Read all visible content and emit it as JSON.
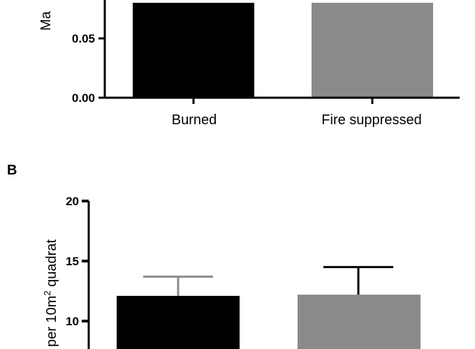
{
  "chart_data": [
    {
      "type": "bar",
      "panel": "",
      "categories": [
        "Burned",
        "Fire suppressed"
      ],
      "values": [
        0.08,
        0.08
      ],
      "colors": [
        "#000000",
        "#8a8a8a"
      ],
      "ylabel": "Ma",
      "yticks": [
        "0.00",
        "0.05"
      ],
      "ytick_values": [
        0.0,
        0.05
      ],
      "ylim": [
        0,
        0.08
      ],
      "visible_range_note": ""
    },
    {
      "type": "bar",
      "panel": "B",
      "categories": [
        "",
        ""
      ],
      "values": [
        12.1,
        12.2
      ],
      "errors": [
        1.6,
        2.3
      ],
      "colors": [
        "#000000",
        "#8a8a8a"
      ],
      "ylabel": "per 10m² quadrat",
      "yticks": [
        "10",
        "15",
        "20"
      ],
      "ytick_values": [
        10,
        15,
        20
      ],
      "ylim": [
        10,
        20
      ]
    }
  ]
}
